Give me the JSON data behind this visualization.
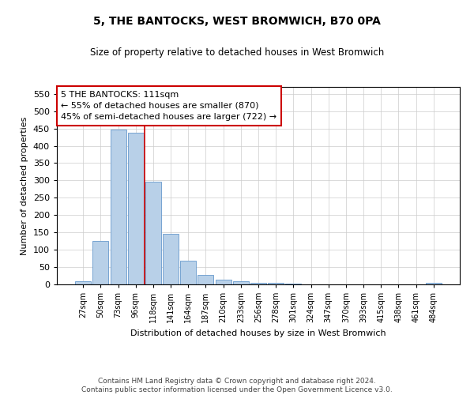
{
  "title": "5, THE BANTOCKS, WEST BROMWICH, B70 0PA",
  "subtitle": "Size of property relative to detached houses in West Bromwich",
  "xlabel": "Distribution of detached houses by size in West Bromwich",
  "ylabel": "Number of detached properties",
  "footer_line1": "Contains HM Land Registry data © Crown copyright and database right 2024.",
  "footer_line2": "Contains public sector information licensed under the Open Government Licence v3.0.",
  "categories": [
    "27sqm",
    "50sqm",
    "73sqm",
    "96sqm",
    "118sqm",
    "141sqm",
    "164sqm",
    "187sqm",
    "210sqm",
    "233sqm",
    "256sqm",
    "278sqm",
    "301sqm",
    "324sqm",
    "347sqm",
    "370sqm",
    "393sqm",
    "415sqm",
    "438sqm",
    "461sqm",
    "484sqm"
  ],
  "values": [
    10,
    125,
    447,
    437,
    297,
    145,
    68,
    27,
    13,
    8,
    5,
    5,
    2,
    1,
    1,
    0,
    0,
    1,
    0,
    0,
    5
  ],
  "bar_color": "#b8d0e8",
  "bar_edge_color": "#6699cc",
  "vline_color": "#cc0000",
  "vline_x_index": 4,
  "annotation_text": "5 THE BANTOCKS: 111sqm\n← 55% of detached houses are smaller (870)\n45% of semi-detached houses are larger (722) →",
  "annotation_box_color": "#ffffff",
  "annotation_box_edge": "#cc0000",
  "ylim": [
    0,
    570
  ],
  "yticks": [
    0,
    50,
    100,
    150,
    200,
    250,
    300,
    350,
    400,
    450,
    500,
    550
  ],
  "background_color": "#ffffff",
  "grid_color": "#cccccc"
}
